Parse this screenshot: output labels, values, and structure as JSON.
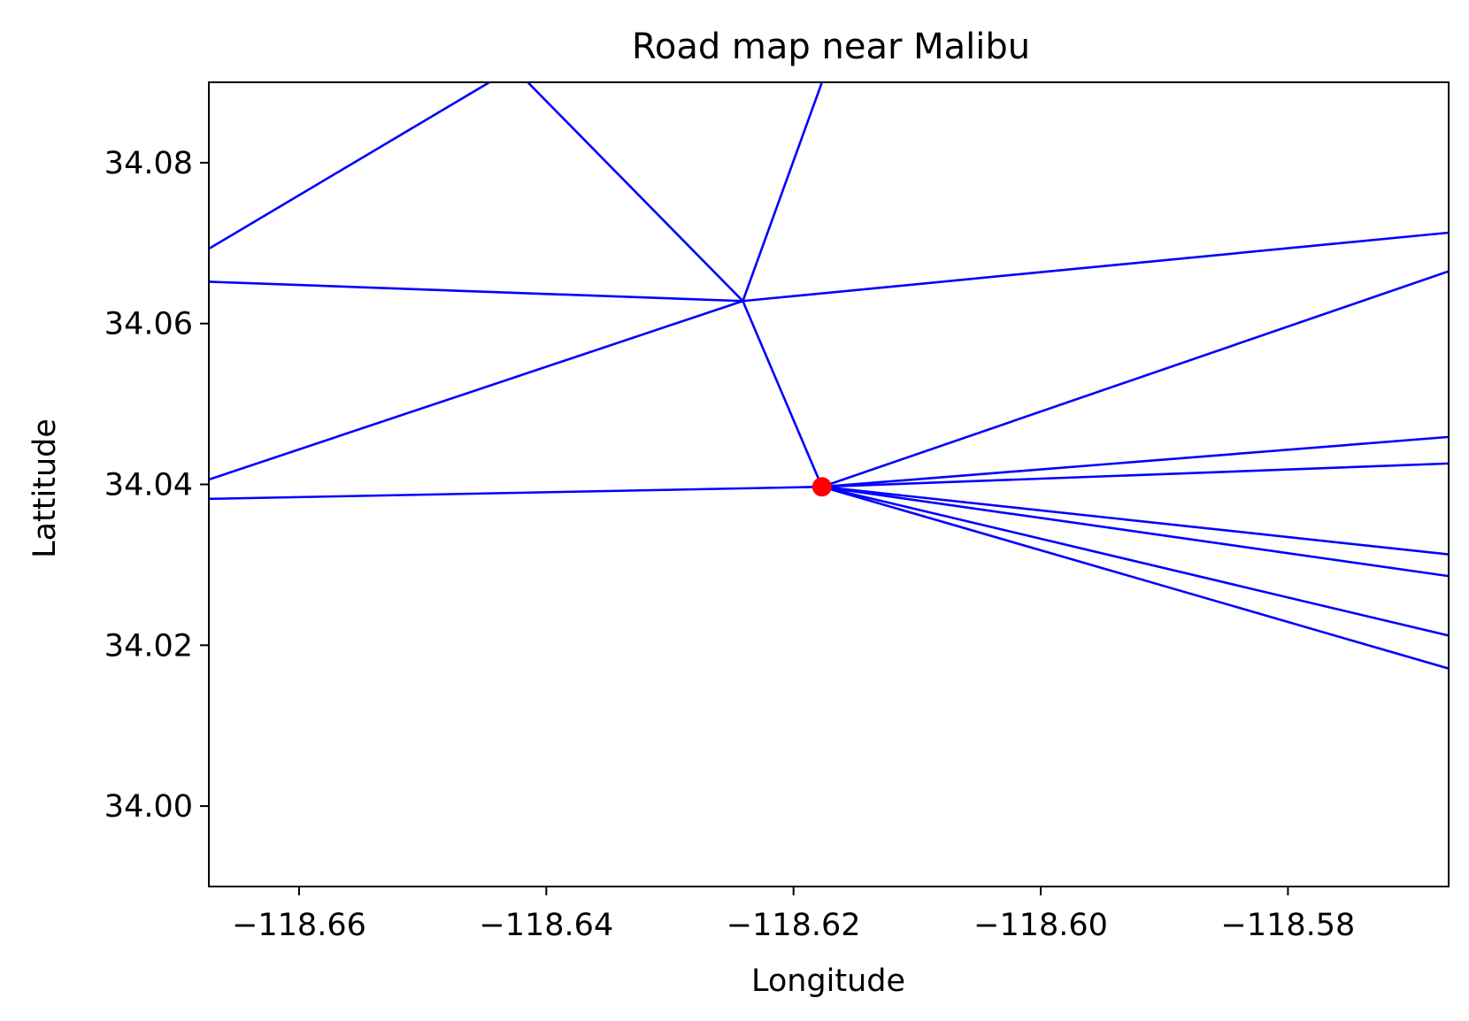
{
  "chart_data": {
    "type": "line",
    "title": "Road map near Malibu",
    "xlabel": "Longitude",
    "ylabel": "Lattitude",
    "xlim": [
      -118.6673,
      -118.567
    ],
    "ylim": [
      33.99,
      34.09
    ],
    "xticks": [
      -118.66,
      -118.64,
      -118.62,
      -118.6,
      -118.58
    ],
    "xtick_labels": [
      "−118.66",
      "−118.64",
      "−118.62",
      "−118.60",
      "−118.58"
    ],
    "yticks": [
      34.0,
      34.02,
      34.04,
      34.06,
      34.08
    ],
    "ytick_labels": [
      "34.00",
      "34.02",
      "34.04",
      "34.06",
      "34.08"
    ],
    "grid": false,
    "road_color": "#0000ff",
    "marker_color": "#ff0000",
    "roads": [
      [
        [
          -118.6673,
          34.0693
        ],
        [
          -118.6446,
          34.09
        ]
      ],
      [
        [
          -118.6415,
          34.09
        ],
        [
          -118.6241,
          34.0628
        ]
      ],
      [
        [
          -118.6241,
          34.0628
        ],
        [
          -118.6177,
          34.09
        ]
      ],
      [
        [
          -118.6673,
          34.0652
        ],
        [
          -118.6241,
          34.0628
        ]
      ],
      [
        [
          -118.6241,
          34.0628
        ],
        [
          -118.567,
          34.0713
        ]
      ],
      [
        [
          -118.6673,
          34.0406
        ],
        [
          -118.6241,
          34.0628
        ]
      ],
      [
        [
          -118.6241,
          34.0628
        ],
        [
          -118.6177,
          34.0397
        ]
      ],
      [
        [
          -118.6673,
          34.0382
        ],
        [
          -118.6177,
          34.0397
        ]
      ],
      [
        [
          -118.6177,
          34.0397
        ],
        [
          -118.567,
          34.0665
        ]
      ],
      [
        [
          -118.6177,
          34.0397
        ],
        [
          -118.567,
          34.0459
        ]
      ],
      [
        [
          -118.6177,
          34.0397
        ],
        [
          -118.567,
          34.0426
        ]
      ],
      [
        [
          -118.6177,
          34.0397
        ],
        [
          -118.567,
          34.0313
        ]
      ],
      [
        [
          -118.6177,
          34.0397
        ],
        [
          -118.567,
          34.0286
        ]
      ],
      [
        [
          -118.6177,
          34.0397
        ],
        [
          -118.567,
          34.0212
        ]
      ],
      [
        [
          -118.6177,
          34.0397
        ],
        [
          -118.567,
          34.0171
        ]
      ]
    ],
    "points": [
      {
        "x": -118.6177,
        "y": 34.0397
      }
    ]
  }
}
